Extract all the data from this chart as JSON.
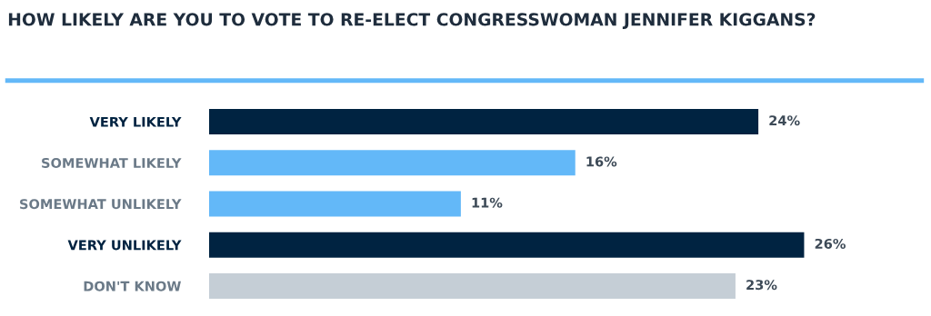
{
  "chart_data": {
    "type": "bar",
    "orientation": "horizontal",
    "title": "HOW LIKELY ARE YOU TO VOTE TO RE-ELECT CONGRESSWOMAN JENNIFER KIGGANS?",
    "categories": [
      "VERY LIKELY",
      "SOMEWHAT LIKELY",
      "SOMEWHAT UNLIKELY",
      "VERY UNLIKELY",
      "DON'T KNOW"
    ],
    "values": [
      24,
      16,
      11,
      26,
      23
    ],
    "value_labels": [
      "24%",
      "16%",
      "11%",
      "26%",
      "23%"
    ],
    "colors": [
      "#002341",
      "#63b8f8",
      "#63b8f8",
      "#002341",
      "#c5ced6"
    ],
    "grid": false,
    "legend": false
  }
}
